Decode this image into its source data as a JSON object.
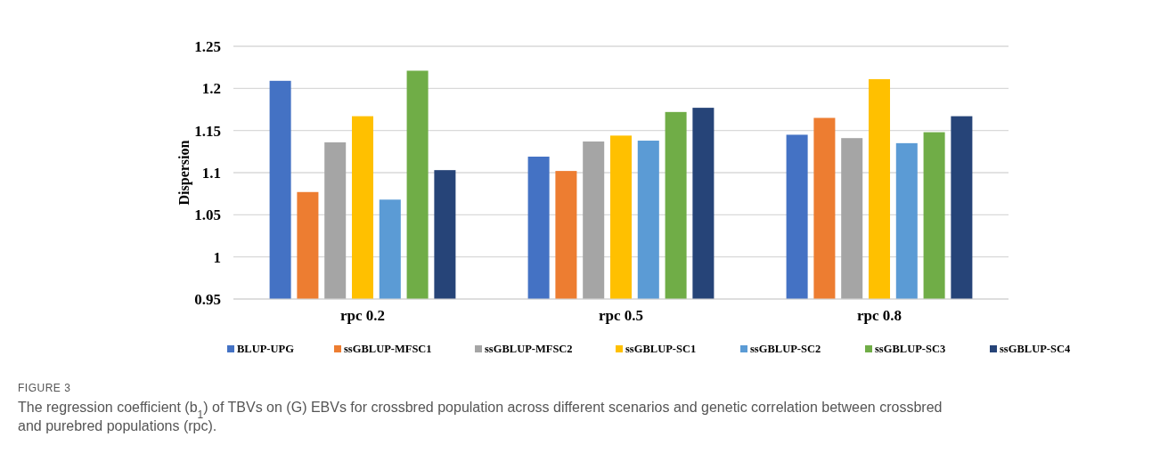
{
  "chart_data": {
    "type": "bar",
    "ylabel": "Dispersion",
    "categories": [
      "rpc 0.2",
      "rpc 0.5",
      "rpc 0.8"
    ],
    "series": [
      {
        "name": "BLUP-UPG",
        "color": "#4472c4",
        "values": [
          1.209,
          1.119,
          1.145
        ]
      },
      {
        "name": "ssGBLUP-MFSC1",
        "color": "#ed7d31",
        "values": [
          1.077,
          1.102,
          1.165
        ]
      },
      {
        "name": "ssGBLUP-MFSC2",
        "color": "#a5a5a5",
        "values": [
          1.136,
          1.137,
          1.141
        ]
      },
      {
        "name": "ssGBLUP-SC1",
        "color": "#ffc000",
        "values": [
          1.167,
          1.144,
          1.211
        ]
      },
      {
        "name": "ssGBLUP-SC2",
        "color": "#5b9bd5",
        "values": [
          1.068,
          1.138,
          1.135
        ]
      },
      {
        "name": "ssGBLUP-SC3",
        "color": "#70ad47",
        "values": [
          1.221,
          1.172,
          1.148
        ]
      },
      {
        "name": "ssGBLUP-SC4",
        "color": "#264478",
        "values": [
          1.103,
          1.177,
          1.167
        ]
      }
    ],
    "ylim": [
      0.95,
      1.25
    ],
    "yticks": [
      0.95,
      1,
      1.05,
      1.1,
      1.15,
      1.2,
      1.25
    ],
    "grid": "y",
    "legend": "bottom",
    "annotations": [
      "FIGURE 3",
      "The regression coefficient (b$_{1}$) of TBVs on (G) EBVs for crossbred population across different scenarios and genetic correlation between crossbred and purebred populations (rpc)."
    ]
  }
}
